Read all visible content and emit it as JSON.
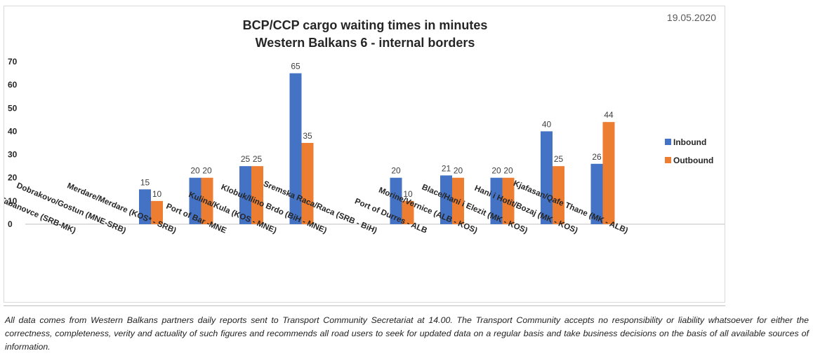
{
  "date": "19.05.2020",
  "disclaimer": "All data comes from Western Balkans partners daily reports sent to Transport Community Secretariat at 14.00. The Transport Community accepts no responsibility or liability whatsoever for either the correctness, completeness, verity and actuality of such figures and recommends all road users to seek for updated data on a regular basis and take business decisions on the basis of all available sources of information.",
  "chart_data": {
    "type": "bar",
    "title": "BCP/CCP cargo waiting times in minutes",
    "subtitle": "Western Balkans 6 - internal borders",
    "categories": [
      "Presevo/ Tabanovce (SRB-MK)",
      "Dobrakovo/Gostun (MNE-SRB)",
      "Merdare/Merdare (KOS* - SRB)",
      "Port of Bar -MNE",
      "Kulina/Kula (KOS - MNE)",
      "Klobuk/Ilino Brdo (BiH - MNE)",
      "Sremska Raca/Raca (SRB - BiH)",
      "Port of Durres - ALB",
      "Morine/Vernice (ALB - KOS)",
      "Blace/Hani i Elezit (MK - KOS)",
      "Hani i Hotit/Bozaj (MK - KOS)",
      "Kjafasan/Qafe Thane (MK - ALB)"
    ],
    "series": [
      {
        "name": "Inbound",
        "color": "#4472c4",
        "values": [
          null,
          null,
          15,
          20,
          25,
          65,
          null,
          20,
          21,
          20,
          40,
          26
        ]
      },
      {
        "name": "Outbound",
        "color": "#ed7d31",
        "values": [
          null,
          null,
          10,
          20,
          25,
          35,
          null,
          10,
          20,
          20,
          25,
          44
        ]
      }
    ],
    "ylim": [
      0,
      70
    ],
    "yticks": [
      0,
      10,
      20,
      30,
      40,
      50,
      60,
      70
    ],
    "legend": "right",
    "grid": false
  }
}
